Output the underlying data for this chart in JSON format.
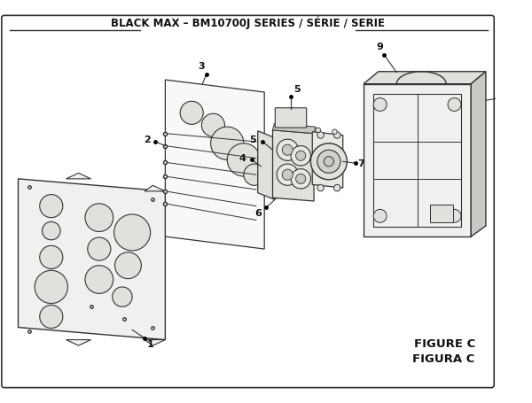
{
  "title": "BLACK MAX – BM10700J SERIES / SÉRIE / SERIE",
  "figure_label": "FIGURE C",
  "figura_label": "FIGURA C",
  "bg_color": "#ffffff",
  "border_color": "#222222",
  "title_fontsize": 8.5,
  "label_fontsize": 8.0,
  "figure_label_fontsize": 9.5,
  "line_color": "#333333",
  "fill_light": "#f0f0ee",
  "fill_mid": "#e0e0dc",
  "fill_dark": "#c8c8c4"
}
